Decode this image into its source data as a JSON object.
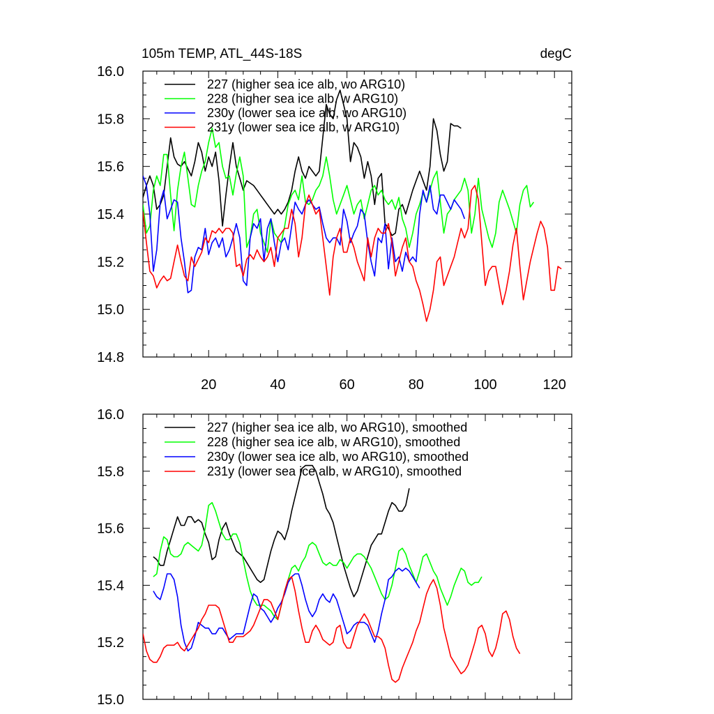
{
  "chart_data": [
    {
      "type": "line",
      "title": "105m TEMP, ATL_44S-18S",
      "units": "degC",
      "xlim": [
        1,
        125
      ],
      "ylim": [
        14.8,
        16.0
      ],
      "xticks": [
        20,
        40,
        60,
        80,
        100,
        120
      ],
      "yticks": [
        14.8,
        15.0,
        15.2,
        15.4,
        15.6,
        15.8,
        16.0
      ],
      "ytick_labels": [
        "14.8",
        "15.0",
        "15.2",
        "15.4",
        "15.6",
        "15.8",
        "16.0"
      ],
      "legend_position": "top-left",
      "series": [
        {
          "name": "227 (higher sea ice alb, wo ARG10)",
          "color": "#000000",
          "x_start": 1,
          "x_step": 1,
          "values": [
            15.47,
            15.52,
            15.56,
            15.52,
            15.42,
            15.44,
            15.48,
            15.6,
            15.72,
            15.64,
            15.61,
            15.6,
            15.62,
            15.59,
            15.56,
            15.62,
            15.7,
            15.66,
            15.58,
            15.64,
            15.6,
            15.66,
            15.54,
            15.35,
            15.48,
            15.6,
            15.7,
            15.6,
            15.55,
            15.5,
            15.54,
            15.53,
            15.52,
            15.5,
            15.48,
            15.46,
            15.44,
            15.42,
            15.4,
            15.42,
            15.4,
            15.42,
            15.45,
            15.5,
            15.58,
            15.64,
            15.58,
            15.55,
            15.6,
            15.58,
            15.56,
            15.58,
            15.72,
            15.86,
            15.82,
            15.8,
            15.88,
            15.92,
            15.86,
            15.8,
            15.62,
            15.7,
            15.68,
            15.64,
            15.55,
            15.62,
            15.56,
            15.44,
            15.55,
            15.57,
            15.36,
            15.34,
            15.31,
            15.32,
            15.42,
            15.44,
            15.4,
            15.45,
            15.5,
            15.54,
            15.58,
            15.54,
            15.5,
            15.6,
            15.8,
            15.75,
            15.65,
            15.58,
            15.62,
            15.78,
            15.77,
            15.77,
            15.76
          ]
        },
        {
          "name": "228 (higher sea ice alb, w ARG10)",
          "color": "#00ff00",
          "x_start": 1,
          "x_step": 1,
          "values": [
            15.44,
            15.32,
            15.35,
            15.5,
            15.56,
            15.52,
            15.65,
            15.65,
            15.48,
            15.33,
            15.5,
            15.6,
            15.66,
            15.55,
            15.44,
            15.43,
            15.52,
            15.58,
            15.62,
            15.7,
            15.76,
            15.68,
            15.7,
            15.6,
            15.55,
            15.56,
            15.48,
            15.57,
            15.64,
            15.56,
            15.26,
            15.3,
            15.4,
            15.42,
            15.32,
            15.28,
            15.24,
            15.38,
            15.32,
            15.3,
            15.28,
            15.35,
            15.44,
            15.48,
            15.5,
            15.46,
            15.56,
            15.45,
            15.44,
            15.46,
            15.5,
            15.52,
            15.56,
            15.64,
            15.56,
            15.46,
            15.4,
            15.44,
            15.48,
            15.52,
            15.46,
            15.4,
            15.44,
            15.46,
            15.38,
            15.44,
            15.5,
            15.52,
            15.48,
            15.5,
            15.46,
            15.44,
            15.46,
            15.42,
            15.47,
            15.38,
            15.34,
            15.26,
            15.32,
            15.4,
            15.44,
            15.49,
            15.45,
            15.5,
            15.55,
            15.58,
            15.45,
            15.32,
            15.4,
            15.42,
            15.46,
            15.48,
            15.5,
            15.55,
            15.5,
            15.32,
            15.4,
            15.55,
            15.42,
            15.36,
            15.3,
            15.26,
            15.32,
            15.45,
            15.5,
            15.46,
            15.42,
            15.37,
            15.32,
            15.44,
            15.5,
            15.52,
            15.43,
            15.45
          ]
        },
        {
          "name": "230y (lower sea ice alb, wo ARG10)",
          "color": "#0000ff",
          "x_start": 1,
          "x_step": 1,
          "values": [
            15.56,
            15.52,
            15.4,
            15.16,
            15.25,
            15.45,
            15.5,
            15.38,
            15.42,
            15.46,
            15.45,
            15.3,
            15.2,
            15.07,
            15.08,
            15.22,
            15.26,
            15.25,
            15.34,
            15.23,
            15.28,
            15.3,
            15.26,
            15.3,
            15.22,
            15.25,
            15.3,
            15.36,
            15.3,
            15.12,
            15.1,
            15.3,
            15.36,
            15.34,
            15.38,
            15.2,
            15.34,
            15.38,
            15.28,
            15.2,
            15.28,
            15.3,
            15.25,
            15.35,
            15.45,
            15.42,
            15.4,
            15.44,
            15.46,
            15.44,
            15.42,
            15.43,
            15.36,
            15.3,
            15.28,
            15.3,
            15.3,
            15.27,
            15.42,
            15.37,
            15.28,
            15.32,
            15.35,
            15.42,
            15.4,
            15.28,
            15.2,
            15.14,
            15.3,
            15.28,
            15.36,
            15.17,
            15.3,
            15.2,
            15.22,
            15.16,
            15.24,
            15.2,
            15.22,
            15.2,
            15.4,
            15.5,
            15.45,
            15.52,
            15.42,
            15.4,
            15.48,
            15.48,
            15.45,
            15.42,
            15.46,
            15.44,
            15.42,
            15.38
          ]
        },
        {
          "name": "231y (lower sea ice alb, w ARG10)",
          "color": "#ff0000",
          "x_start": 1,
          "x_step": 1,
          "values": [
            15.41,
            15.28,
            15.16,
            15.14,
            15.09,
            15.12,
            15.14,
            15.12,
            15.13,
            15.2,
            15.27,
            15.2,
            15.14,
            15.12,
            15.22,
            15.18,
            15.21,
            15.24,
            15.3,
            15.28,
            15.33,
            15.32,
            15.34,
            15.32,
            15.34,
            15.34,
            15.32,
            15.18,
            15.19,
            15.14,
            15.21,
            15.23,
            15.21,
            15.25,
            15.22,
            15.2,
            15.22,
            15.26,
            15.18,
            15.3,
            15.32,
            15.34,
            15.34,
            15.42,
            15.36,
            15.22,
            15.3,
            15.44,
            15.48,
            15.44,
            15.4,
            15.42,
            15.3,
            15.18,
            15.06,
            15.22,
            15.3,
            15.34,
            15.24,
            15.24,
            15.3,
            15.26,
            15.2,
            15.16,
            15.12,
            15.3,
            15.22,
            15.3,
            15.34,
            15.32,
            15.32,
            15.36,
            15.28,
            15.14,
            15.2,
            15.26,
            15.3,
            15.2,
            15.18,
            15.12,
            15.08,
            15.02,
            14.95,
            15.0,
            15.08,
            15.2,
            15.22,
            15.1,
            15.14,
            15.18,
            15.22,
            15.28,
            15.34,
            15.3,
            15.34,
            15.5,
            15.52,
            15.46,
            15.28,
            15.1,
            15.16,
            15.18,
            15.18,
            15.1,
            15.02,
            15.08,
            15.16,
            15.27,
            15.34,
            15.18,
            15.04,
            15.12,
            15.2,
            15.26,
            15.32,
            15.37,
            15.34,
            15.26,
            15.08,
            15.08,
            15.18,
            15.17
          ]
        }
      ]
    },
    {
      "type": "line",
      "xlim": [
        1,
        125
      ],
      "ylim": [
        15.0,
        16.0
      ],
      "yticks": [
        15.0,
        15.2,
        15.4,
        15.6,
        15.8,
        16.0
      ],
      "ytick_labels": [
        "15.0",
        "15.2",
        "15.4",
        "15.6",
        "15.8",
        "16.0"
      ],
      "legend_position": "top-left",
      "series": [
        {
          "name": "227 (higher sea ice alb, wo ARG10), smoothed",
          "color": "#000000",
          "x_start": 4,
          "x_step": 1,
          "values": [
            15.5,
            15.49,
            15.47,
            15.47,
            15.52,
            15.56,
            15.6,
            15.64,
            15.61,
            15.61,
            15.64,
            15.64,
            15.62,
            15.63,
            15.62,
            15.58,
            15.55,
            15.49,
            15.5,
            15.56,
            15.6,
            15.62,
            15.58,
            15.55,
            15.52,
            15.51,
            15.5,
            15.48,
            15.46,
            15.44,
            15.42,
            15.41,
            15.42,
            15.47,
            15.52,
            15.56,
            15.59,
            15.58,
            15.56,
            15.6,
            15.66,
            15.71,
            15.76,
            15.81,
            15.82,
            15.82,
            15.82,
            15.8,
            15.76,
            15.72,
            15.67,
            15.65,
            15.62,
            15.57,
            15.52,
            15.47,
            15.43,
            15.39,
            15.36,
            15.38,
            15.42,
            15.46,
            15.5,
            15.54,
            15.56,
            15.58,
            15.58,
            15.62,
            15.66,
            15.69,
            15.68,
            15.66,
            15.66,
            15.68,
            15.74
          ]
        },
        {
          "name": "228 (higher sea ice alb, w ARG10), smoothed",
          "color": "#00ff00",
          "x_start": 4,
          "x_step": 1,
          "values": [
            15.43,
            15.44,
            15.52,
            15.57,
            15.56,
            15.51,
            15.5,
            15.5,
            15.51,
            15.54,
            15.55,
            15.54,
            15.53,
            15.52,
            15.54,
            15.6,
            15.68,
            15.69,
            15.66,
            15.62,
            15.58,
            15.56,
            15.56,
            15.58,
            15.58,
            15.55,
            15.49,
            15.43,
            15.38,
            15.35,
            15.33,
            15.33,
            15.33,
            15.32,
            15.31,
            15.29,
            15.28,
            15.33,
            15.38,
            15.42,
            15.46,
            15.47,
            15.45,
            15.48,
            15.5,
            15.54,
            15.55,
            15.54,
            15.51,
            15.48,
            15.47,
            15.48,
            15.47,
            15.47,
            15.49,
            15.48,
            15.46,
            15.48,
            15.5,
            15.51,
            15.51,
            15.5,
            15.48,
            15.46,
            15.43,
            15.4,
            15.37,
            15.35,
            15.36,
            15.4,
            15.46,
            15.52,
            15.53,
            15.51,
            15.47,
            15.44,
            15.41,
            15.45,
            15.5,
            15.51,
            15.48,
            15.45,
            15.43,
            15.39,
            15.36,
            15.33,
            15.36,
            15.4,
            15.43,
            15.46,
            15.45,
            15.41,
            15.4,
            15.41,
            15.41,
            15.43
          ]
        },
        {
          "name": "230y (lower sea ice alb, wo ARG10), smoothed",
          "color": "#0000ff",
          "x_start": 4,
          "x_step": 1,
          "values": [
            15.38,
            15.36,
            15.35,
            15.39,
            15.44,
            15.44,
            15.42,
            15.36,
            15.26,
            15.2,
            15.17,
            15.18,
            15.22,
            15.27,
            15.26,
            15.25,
            15.25,
            15.23,
            15.23,
            15.25,
            15.25,
            15.23,
            15.21,
            15.22,
            15.23,
            15.23,
            15.23,
            15.28,
            15.33,
            15.37,
            15.36,
            15.32,
            15.31,
            15.29,
            15.27,
            15.29,
            15.32,
            15.34,
            15.37,
            15.41,
            15.43,
            15.44,
            15.44,
            15.4,
            15.35,
            15.31,
            15.29,
            15.31,
            15.35,
            15.37,
            15.35,
            15.34,
            15.37,
            15.35,
            15.31,
            15.27,
            15.23,
            15.24,
            15.26,
            15.27,
            15.27,
            15.27,
            15.26,
            15.23,
            15.2,
            15.24,
            15.3,
            15.35,
            15.42,
            15.43,
            15.45,
            15.46,
            15.45,
            15.46,
            15.45,
            15.43,
            15.41,
            15.39
          ]
        },
        {
          "name": "231y (lower sea ice alb, w ARG10), smoothed",
          "color": "#ff0000",
          "x_start": 1,
          "x_step": 1,
          "values": [
            15.23,
            15.17,
            15.14,
            15.13,
            15.13,
            15.15,
            15.18,
            15.19,
            15.19,
            15.19,
            15.2,
            15.18,
            15.17,
            15.19,
            15.21,
            15.23,
            15.25,
            15.28,
            15.3,
            15.33,
            15.33,
            15.33,
            15.32,
            15.28,
            15.24,
            15.2,
            15.2,
            15.22,
            15.22,
            15.22,
            15.23,
            15.24,
            15.26,
            15.29,
            15.32,
            15.35,
            15.35,
            15.34,
            15.31,
            15.28,
            15.33,
            15.38,
            15.42,
            15.43,
            15.38,
            15.31,
            15.25,
            15.2,
            15.2,
            15.24,
            15.26,
            15.24,
            15.21,
            15.2,
            15.19,
            15.2,
            15.25,
            15.26,
            15.2,
            15.18,
            15.18,
            15.22,
            15.26,
            15.28,
            15.3,
            15.28,
            15.25,
            15.22,
            15.22,
            15.21,
            15.18,
            15.12,
            15.07,
            15.06,
            15.07,
            15.11,
            15.14,
            15.17,
            15.2,
            15.24,
            15.27,
            15.32,
            15.37,
            15.4,
            15.42,
            15.39,
            15.33,
            15.25,
            15.2,
            15.15,
            15.13,
            15.11,
            15.09,
            15.1,
            15.12,
            15.16,
            15.2,
            15.25,
            15.26,
            15.23,
            15.17,
            15.15,
            15.18,
            15.23,
            15.3,
            15.31,
            15.28,
            15.22,
            15.18,
            15.16
          ]
        }
      ]
    }
  ]
}
